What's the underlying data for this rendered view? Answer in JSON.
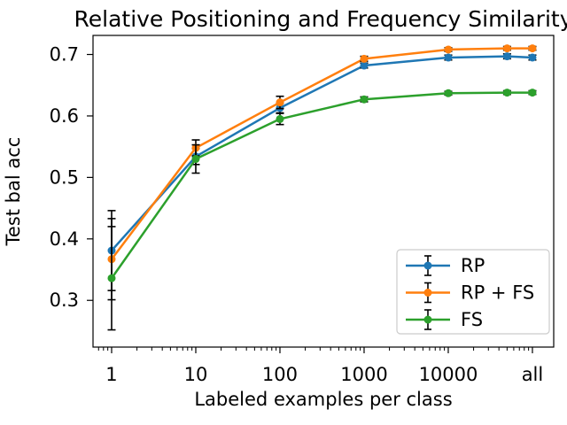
{
  "chart_data": {
    "type": "line",
    "title": "Relative Positioning and Frequency Similarity",
    "xlabel": "Labeled examples per class",
    "ylabel": "Test bal acc",
    "x_scale": "log",
    "background_color": "#ffffff",
    "error_bar_color": "#000000",
    "x_categories": [
      "1",
      "10",
      "100",
      "1000",
      "10000",
      "50000",
      "all"
    ],
    "x_log_positions": [
      0,
      1,
      2,
      3,
      4,
      4.699,
      5
    ],
    "x_axis_ticks": {
      "labels": [
        "1",
        "10",
        "100",
        "1000",
        "10000",
        "all"
      ],
      "log_positions": [
        0,
        1,
        2,
        3,
        4,
        5
      ]
    },
    "y_ticks": [
      "0.3",
      "0.4",
      "0.5",
      "0.6",
      "0.7"
    ],
    "y_tick_values": [
      0.3,
      0.4,
      0.5,
      0.6,
      0.7
    ],
    "ylim": [
      0.224,
      0.731
    ],
    "xlim_log": [
      -0.221,
      5.253
    ],
    "grid": false,
    "series": [
      {
        "name": "RP",
        "color": "#1f77b4",
        "values": [
          0.381,
          0.534,
          0.613,
          0.682,
          0.695,
          0.697,
          0.695
        ],
        "errors": [
          0.065,
          0.013,
          0.008,
          0.004,
          0.004,
          0.004,
          0.004
        ]
      },
      {
        "name": "RP + FS",
        "color": "#ff7f0e",
        "values": [
          0.367,
          0.548,
          0.622,
          0.693,
          0.708,
          0.71,
          0.71
        ],
        "errors": [
          0.066,
          0.013,
          0.01,
          0.004,
          0.003,
          0.003,
          0.003
        ]
      },
      {
        "name": "FS",
        "color": "#2ca02c",
        "values": [
          0.336,
          0.53,
          0.595,
          0.627,
          0.637,
          0.638,
          0.638
        ],
        "errors": [
          0.084,
          0.023,
          0.009,
          0.004,
          0.003,
          0.003,
          0.003
        ]
      }
    ],
    "legend": {
      "position": "lower right",
      "entries": [
        "RP",
        "RP + FS",
        "FS"
      ]
    }
  }
}
